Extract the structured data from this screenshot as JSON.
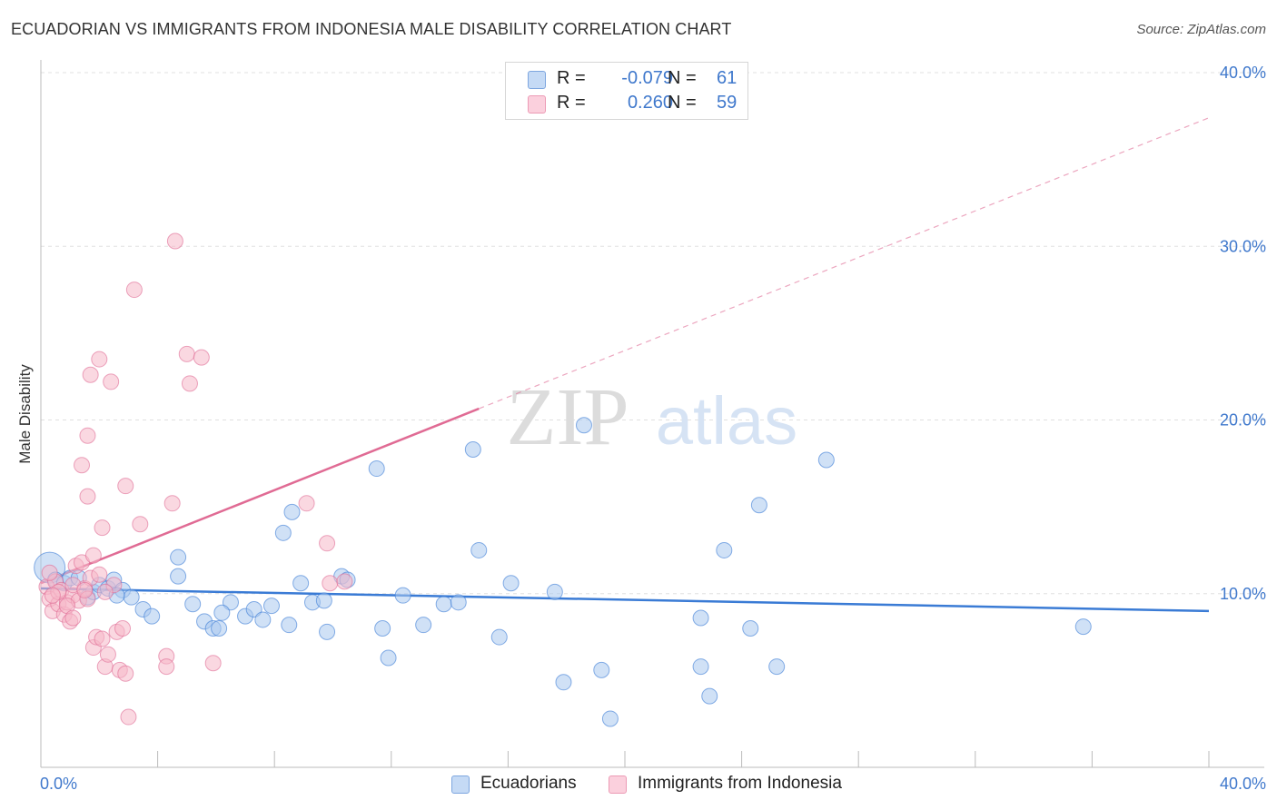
{
  "header": {
    "title": "ECUADORIAN VS IMMIGRANTS FROM INDONESIA MALE DISABILITY CORRELATION CHART",
    "source": "Source: ZipAtlas.com"
  },
  "watermark": {
    "zip": "ZIP",
    "atlas": "atlas"
  },
  "legend": {
    "rows": [
      {
        "r_label": "R =",
        "r_value": "-0.079",
        "n_label": "N =",
        "n_value": "61",
        "color": "#a9c8ef"
      },
      {
        "r_label": "R =",
        "r_value": "0.260",
        "n_label": "N =",
        "n_value": "59",
        "color": "#f6b8c9"
      }
    ]
  },
  "bottom_legend": {
    "items": [
      {
        "label": "Ecuadorians",
        "color": "#a9c8ef"
      },
      {
        "label": "Immigrants from Indonesia",
        "color": "#f6b8c9"
      }
    ]
  },
  "chart_data": {
    "type": "scatter",
    "title": "ECUADORIAN VS IMMIGRANTS FROM INDONESIA MALE DISABILITY CORRELATION CHART",
    "ylabel": "Male Disability",
    "xlabel": "",
    "xlim": [
      0,
      40
    ],
    "ylim": [
      0,
      40
    ],
    "x_tick_labels": [
      "0.0%",
      "40.0%"
    ],
    "y_tick_labels": [
      "10.0%",
      "20.0%",
      "30.0%",
      "40.0%"
    ],
    "y_ticks": [
      10,
      20,
      30,
      40
    ],
    "grid": "horizontal dashed",
    "legend_position": "top-center",
    "series": [
      {
        "name": "Ecuadorians",
        "color": "#3a7bd5",
        "fill": "#a9c8ef",
        "r": -0.079,
        "n": 61,
        "trend": {
          "x0": 0,
          "y0": 10.3,
          "x1": 40,
          "y1": 9.0,
          "solid_to": 40
        },
        "points": [
          [
            0.3,
            11.5
          ],
          [
            0.5,
            10.8
          ],
          [
            0.8,
            10.6
          ],
          [
            1.0,
            10.9
          ],
          [
            1.3,
            10.9
          ],
          [
            1.6,
            9.8
          ],
          [
            1.8,
            10.1
          ],
          [
            2.0,
            10.5
          ],
          [
            2.3,
            10.3
          ],
          [
            2.5,
            10.8
          ],
          [
            2.8,
            10.2
          ],
          [
            3.1,
            9.8
          ],
          [
            3.5,
            9.1
          ],
          [
            3.8,
            8.7
          ],
          [
            4.7,
            11.0
          ],
          [
            5.2,
            9.4
          ],
          [
            5.6,
            8.4
          ],
          [
            5.9,
            8.0
          ],
          [
            6.1,
            8.0
          ],
          [
            6.5,
            9.5
          ],
          [
            7.0,
            8.7
          ],
          [
            7.3,
            9.1
          ],
          [
            7.6,
            8.5
          ],
          [
            7.9,
            9.3
          ],
          [
            8.5,
            8.2
          ],
          [
            8.9,
            10.6
          ],
          [
            9.3,
            9.5
          ],
          [
            9.8,
            7.8
          ],
          [
            10.3,
            11.0
          ],
          [
            10.5,
            10.8
          ],
          [
            11.7,
            8.0
          ],
          [
            11.9,
            6.3
          ],
          [
            12.4,
            9.9
          ],
          [
            13.1,
            8.2
          ],
          [
            13.8,
            9.4
          ],
          [
            14.3,
            9.5
          ],
          [
            15.0,
            12.5
          ],
          [
            14.8,
            18.3
          ],
          [
            15.7,
            7.5
          ],
          [
            16.1,
            10.6
          ],
          [
            17.6,
            10.1
          ],
          [
            17.9,
            4.9
          ],
          [
            18.6,
            19.7
          ],
          [
            19.2,
            5.6
          ],
          [
            22.6,
            8.6
          ],
          [
            22.6,
            5.8
          ],
          [
            22.9,
            4.1
          ],
          [
            23.4,
            12.5
          ],
          [
            24.3,
            8.0
          ],
          [
            24.6,
            15.1
          ],
          [
            25.2,
            5.8
          ],
          [
            26.9,
            17.7
          ],
          [
            35.7,
            8.1
          ],
          [
            8.6,
            14.7
          ],
          [
            8.3,
            13.5
          ],
          [
            4.7,
            12.1
          ],
          [
            11.5,
            17.2
          ],
          [
            19.5,
            2.8
          ],
          [
            6.2,
            8.9
          ],
          [
            9.7,
            9.6
          ],
          [
            2.6,
            9.9
          ]
        ]
      },
      {
        "name": "Immigrants from Indonesia",
        "color": "#e06b94",
        "fill": "#f6b8c9",
        "r": 0.26,
        "n": 59,
        "trend": {
          "x0": 0,
          "y0": 10.6,
          "x1": 40,
          "y1": 37.4,
          "solid_to": 15.0
        },
        "points": [
          [
            0.2,
            10.4
          ],
          [
            0.3,
            9.7
          ],
          [
            0.4,
            9.0
          ],
          [
            0.5,
            10.7
          ],
          [
            0.6,
            9.4
          ],
          [
            0.7,
            10.2
          ],
          [
            0.8,
            8.8
          ],
          [
            0.9,
            9.5
          ],
          [
            1.0,
            8.4
          ],
          [
            1.1,
            9.9
          ],
          [
            1.2,
            11.6
          ],
          [
            1.3,
            9.6
          ],
          [
            1.4,
            11.8
          ],
          [
            1.5,
            10.3
          ],
          [
            1.6,
            9.7
          ],
          [
            1.7,
            10.9
          ],
          [
            1.8,
            6.9
          ],
          [
            1.9,
            7.5
          ],
          [
            2.0,
            11.1
          ],
          [
            2.1,
            7.4
          ],
          [
            2.2,
            5.8
          ],
          [
            2.3,
            6.5
          ],
          [
            2.5,
            10.5
          ],
          [
            2.6,
            7.8
          ],
          [
            2.7,
            5.6
          ],
          [
            2.8,
            8.0
          ],
          [
            2.9,
            5.4
          ],
          [
            3.0,
            2.9
          ],
          [
            1.1,
            10.5
          ],
          [
            1.6,
            15.6
          ],
          [
            1.4,
            17.4
          ],
          [
            1.6,
            19.1
          ],
          [
            1.7,
            22.6
          ],
          [
            2.0,
            23.5
          ],
          [
            2.4,
            22.2
          ],
          [
            2.9,
            16.2
          ],
          [
            2.1,
            13.8
          ],
          [
            1.8,
            12.2
          ],
          [
            3.2,
            27.5
          ],
          [
            3.4,
            14.0
          ],
          [
            4.5,
            15.2
          ],
          [
            4.6,
            30.3
          ],
          [
            5.0,
            23.8
          ],
          [
            5.1,
            22.1
          ],
          [
            5.5,
            23.6
          ],
          [
            4.3,
            6.4
          ],
          [
            4.3,
            5.8
          ],
          [
            5.9,
            6.0
          ],
          [
            9.1,
            15.2
          ],
          [
            9.8,
            12.9
          ],
          [
            9.9,
            10.6
          ],
          [
            10.4,
            10.7
          ],
          [
            0.9,
            9.3
          ],
          [
            1.1,
            8.6
          ],
          [
            0.6,
            10.1
          ],
          [
            0.3,
            11.2
          ],
          [
            1.5,
            10.2
          ],
          [
            0.4,
            9.9
          ],
          [
            2.2,
            10.1
          ]
        ]
      }
    ]
  }
}
